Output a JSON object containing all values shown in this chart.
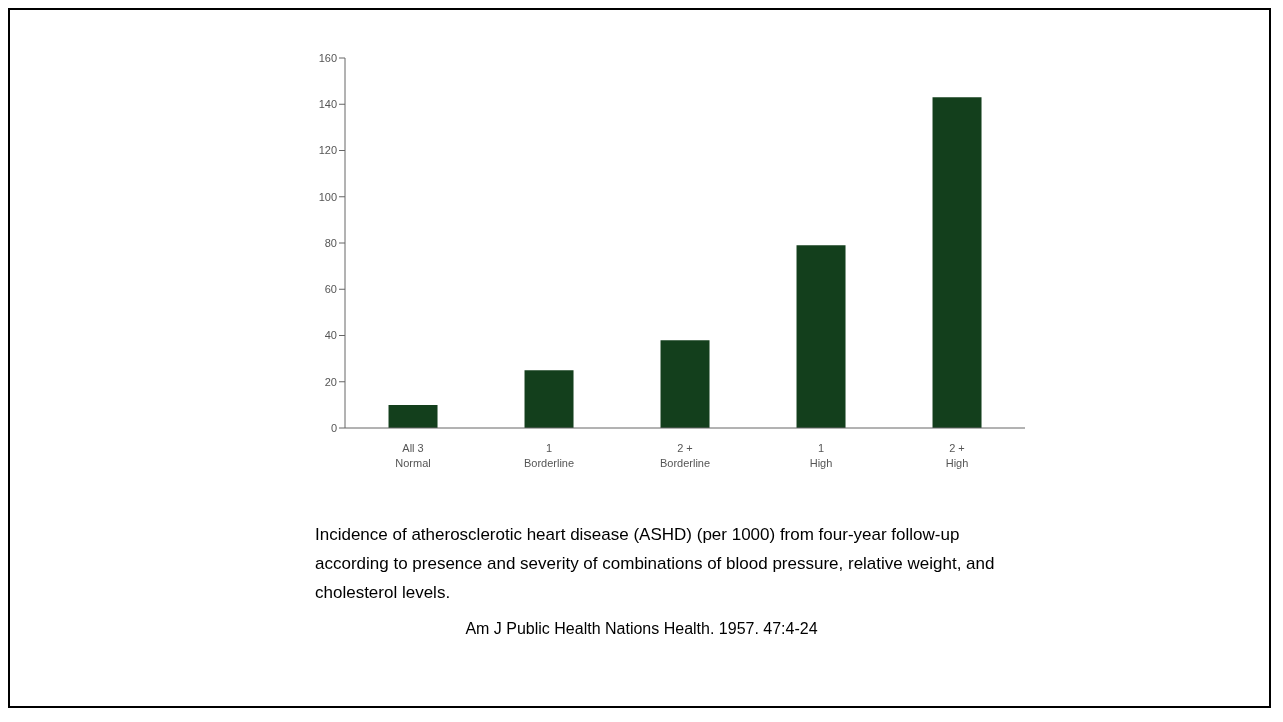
{
  "chart_data": {
    "type": "bar",
    "categories": [
      "All 3\nNormal",
      "1\nBorderline",
      "2 +\nBorderline",
      "1\nHigh",
      "2 +\nHigh"
    ],
    "values": [
      10,
      25,
      38,
      79,
      143
    ],
    "color": "#133f1c",
    "ylim": [
      0,
      160
    ],
    "yticks": [
      0,
      20,
      40,
      60,
      80,
      100,
      120,
      140,
      160
    ],
    "grid": false,
    "legend": false,
    "annotations": [
      "Incidence of atherosclerotic heart disease (ASHD) (per 1000) from four-year follow-up according to presence and severity of combinations of blood pressure, relative weight, and cholesterol levels.",
      "Am J Public Health Nations Health. 1957. 47:4-24"
    ]
  }
}
